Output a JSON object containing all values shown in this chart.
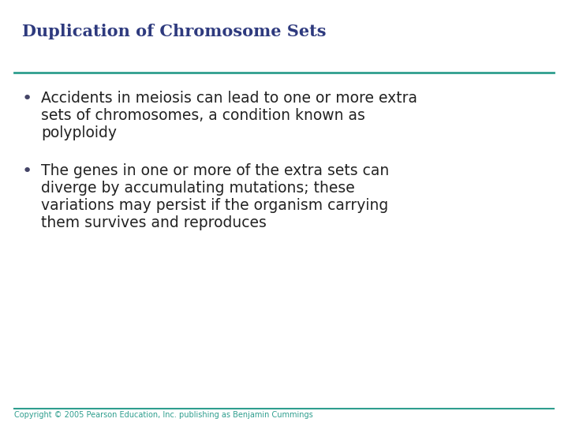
{
  "title": "Duplication of Chromosome Sets",
  "title_color": "#2E3A7E",
  "title_fontsize": 15,
  "divider_color": "#2E9E8E",
  "background_color": "#FFFFFF",
  "bullet1_lines": [
    "Accidents in meiosis can lead to one or more extra",
    "sets of chromosomes, a condition known as",
    "polyploidy"
  ],
  "bullet2_lines": [
    "The genes in one or more of the extra sets can",
    "diverge by accumulating mutations; these",
    "variations may persist if the organism carrying",
    "them survives and reproduces"
  ],
  "bullet_color": "#222222",
  "bullet_fontsize": 13.5,
  "bullet_dot_color": "#444466",
  "bullet_dot_fontsize": 16,
  "footer": "Copyright © 2005 Pearson Education, Inc. publishing as Benjamin Cummings",
  "footer_fontsize": 7,
  "footer_color": "#2E9E8E",
  "footer_divider_color": "#2E9E8E"
}
